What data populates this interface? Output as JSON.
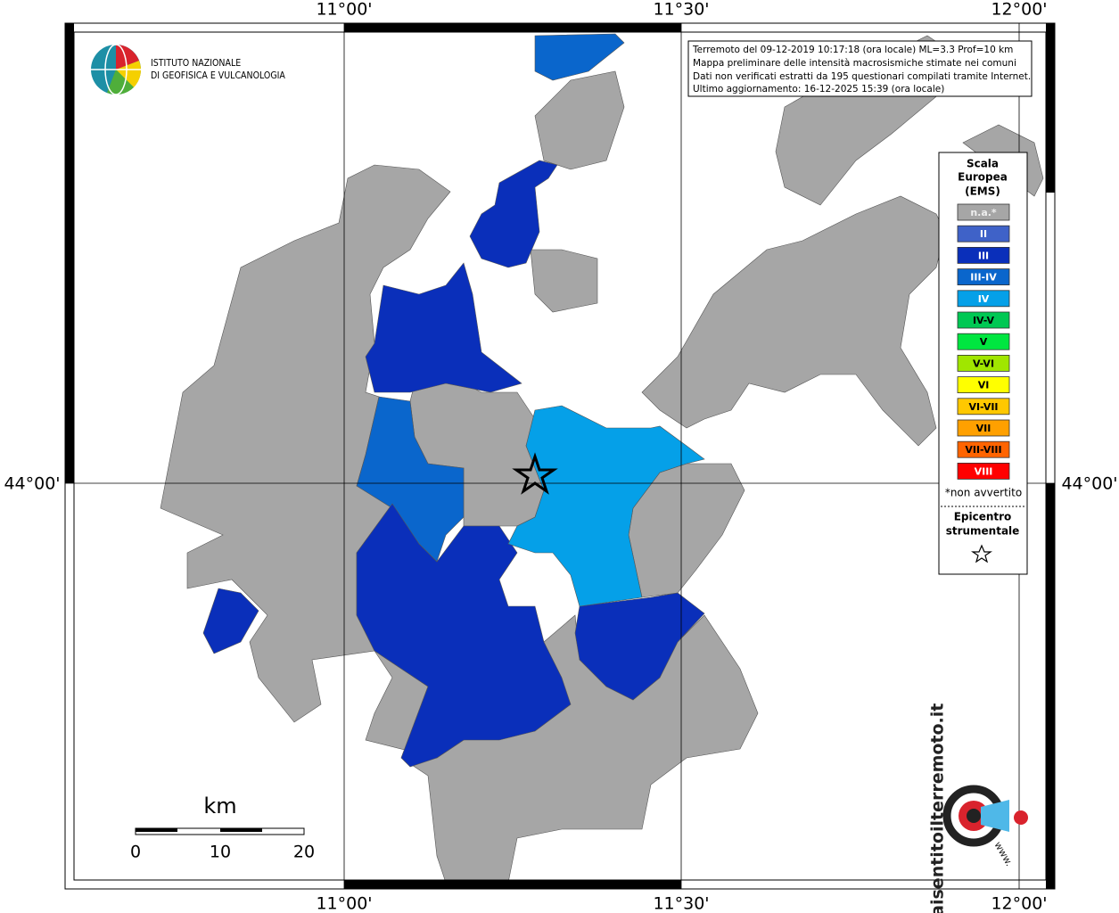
{
  "map": {
    "lon_labels": [
      "11°00'",
      "11°30'",
      "12°00'"
    ],
    "lat_labels": [
      "44°00'"
    ],
    "info": [
      "Terremoto del 09-12-2019 10:17:18 (ora locale) ML=3.3 Prof=10 km",
      "Mappa preliminare delle intensità macrosismiche stimate nei comuni",
      "Dati non verificati estratti da 195 questionari compilati tramite Internet.",
      "Ultimo aggiornamento: 16-12-2025 15:39 (ora locale)"
    ],
    "logo": [
      "ISTITUTO NAZIONALE",
      "DI GEOFISICA E VULCANOLOGIA"
    ],
    "legend": {
      "title": [
        "Scala",
        "Europea",
        "(EMS)"
      ],
      "items": [
        {
          "label": "n.a.*",
          "color": "#a6a6a6"
        },
        {
          "label": "II",
          "color": "#3f62c8"
        },
        {
          "label": "III",
          "color": "#0a2fba"
        },
        {
          "label": "III-IV",
          "color": "#0a66cc"
        },
        {
          "label": "IV",
          "color": "#05a0e8"
        },
        {
          "label": "IV-V",
          "color": "#00c853"
        },
        {
          "label": "V",
          "color": "#00e640"
        },
        {
          "label": "V-VI",
          "color": "#a0e600"
        },
        {
          "label": "VI",
          "color": "#ffff00"
        },
        {
          "label": "VI-VII",
          "color": "#ffc800"
        },
        {
          "label": "VII",
          "color": "#ffa000"
        },
        {
          "label": "VII-VIII",
          "color": "#ff6400"
        },
        {
          "label": "VIII",
          "color": "#ff0000"
        }
      ],
      "note": "*non avvertito",
      "epicenter": [
        "Epicentro",
        "strumentale"
      ]
    },
    "scale_bar": {
      "unit": "km",
      "labels": [
        "0",
        "10",
        "20"
      ]
    },
    "hsit": {
      "text": "haisentitoilterremoto.it",
      "www": "www."
    }
  }
}
